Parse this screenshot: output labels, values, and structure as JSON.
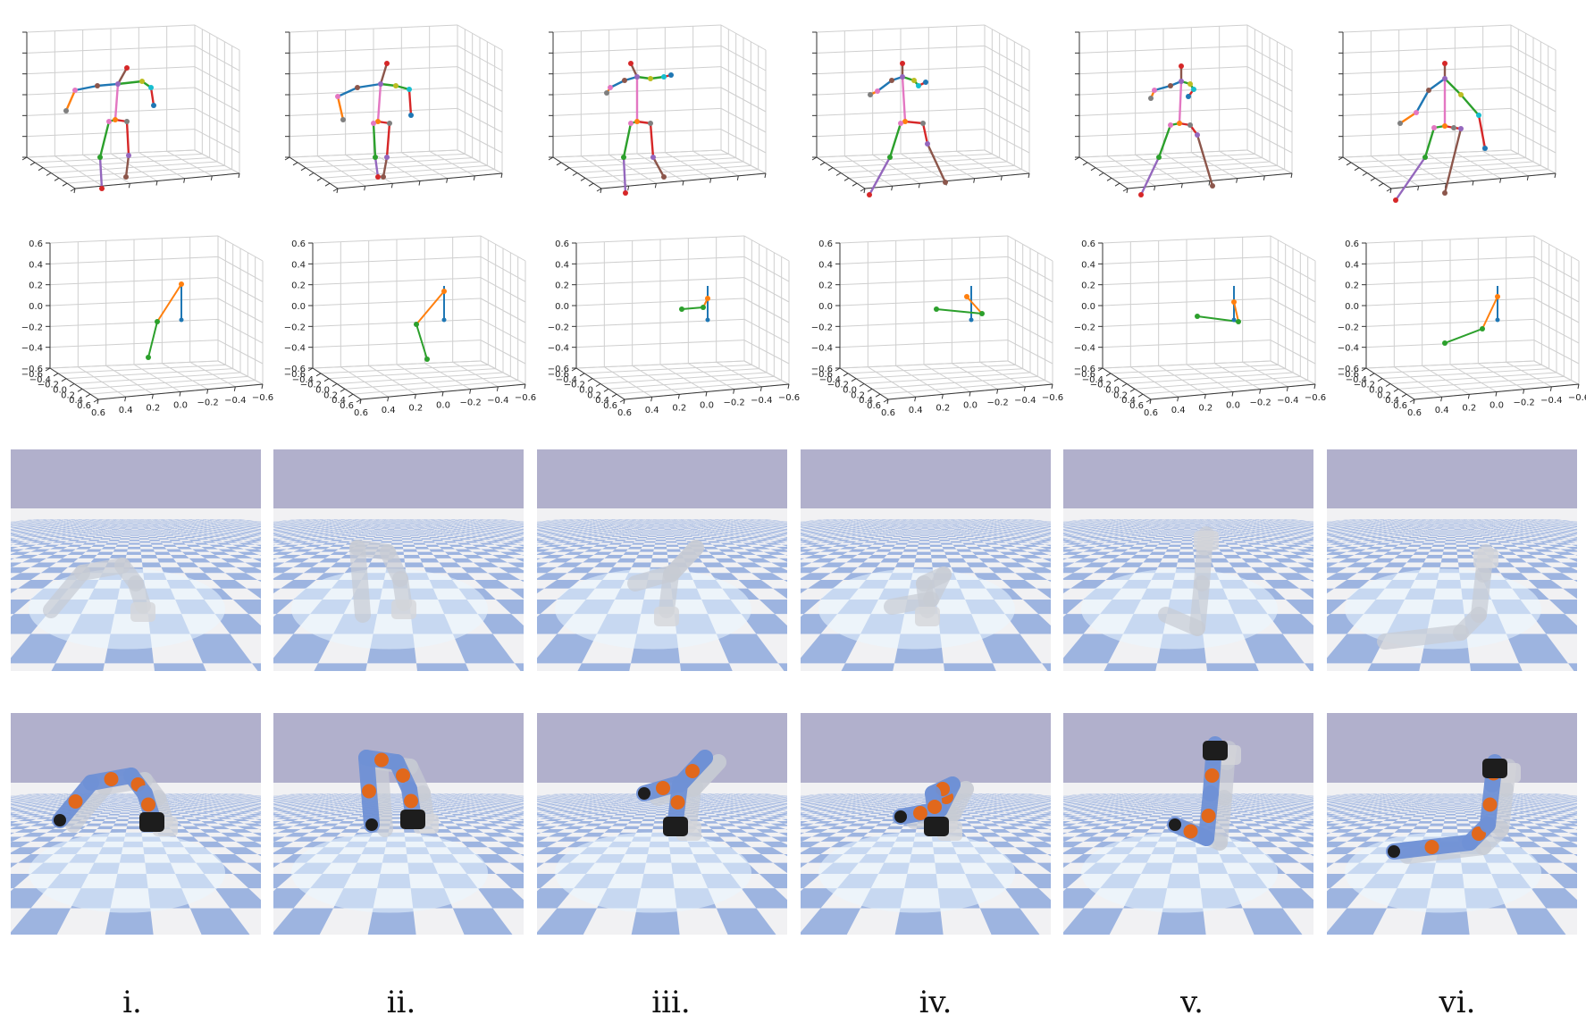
{
  "figure": {
    "columns": [
      {
        "label": "i."
      },
      {
        "label": "ii."
      },
      {
        "label": "iii."
      },
      {
        "label": "iv."
      },
      {
        "label": "v."
      },
      {
        "label": "vi."
      }
    ],
    "rows": [
      {
        "name": "human-pose-3d-plots"
      },
      {
        "name": "arm-joint-3d-plots"
      },
      {
        "name": "robot-sim-ghost-pose"
      },
      {
        "name": "robot-sim-tracked-pose"
      }
    ],
    "axis_ticks": {
      "z": [
        "0.6",
        "0.4",
        "0.2",
        "0.0",
        "−0.2",
        "−0.4",
        "−0.6"
      ],
      "y": [
        "−0.6",
        "−0.4",
        "−0.2",
        "0.0",
        "0.2",
        "0.4",
        "0.6"
      ],
      "x": [
        "0.6",
        "0.4",
        "0.2",
        "0.0",
        "−0.2",
        "−0.4",
        "−0.6"
      ]
    },
    "colors": {
      "sky": "#b1b0cc",
      "floor_light": "#f1f1f3",
      "floor_dark": "#9db4e0",
      "arm_blue": "#6f91d6",
      "arm_orange": "#e1681c",
      "arm_black": "#1d1d1d",
      "skeleton": [
        "#1f77b4",
        "#ff7f0e",
        "#2ca02c",
        "#d62728",
        "#9467bd",
        "#8c564b",
        "#e377c2",
        "#7f7f7f",
        "#bcbd22",
        "#17becf"
      ]
    }
  }
}
